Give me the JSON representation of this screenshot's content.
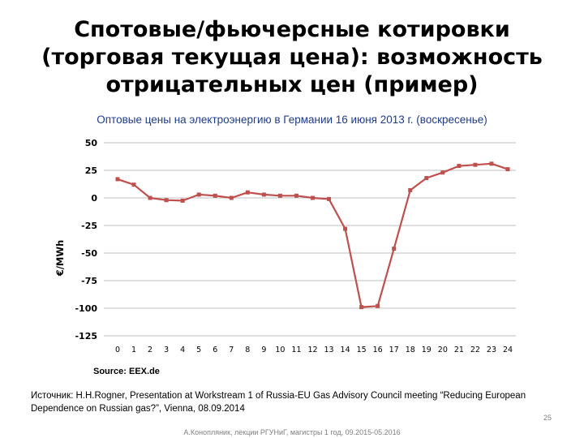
{
  "slide": {
    "title_lines": [
      "Спотовые/фьючерсные котировки",
      "(торговая текущая цена): возможность",
      "отрицательных цен (пример)"
    ],
    "footnote": "Источник: H.H.Rogner, Presentation at Workstream 1 of Russia-EU Gas Advisory Council meeting “Reducing European Dependence on Russian gas?”, Vienna, 08.09.2014",
    "page_number": "25",
    "lecture_credit": "А.Конопляник, лекции РГУНиГ, магистры 1 год, 09.2015-05.2016"
  },
  "chart_data": {
    "type": "line",
    "title": "Оптовые цены на электроэнергию в Германии 16 июня 2013 г. (воскресенье)",
    "xlabel": "",
    "ylabel": "€/MWh",
    "source": "Source: EEX.de",
    "ylim": [
      -125,
      50
    ],
    "yticks": [
      50,
      25,
      0,
      -25,
      -50,
      -75,
      -100,
      -125
    ],
    "categories": [
      "0",
      "1",
      "2",
      "3",
      "4",
      "5",
      "6",
      "7",
      "8",
      "9",
      "10",
      "11",
      "12",
      "13",
      "14",
      "15",
      "16",
      "17",
      "18",
      "19",
      "20",
      "21",
      "22",
      "23",
      "24"
    ],
    "grid": "horizontal",
    "legend": "none",
    "color": "#c0504d",
    "series": [
      {
        "values": [
          17,
          12,
          0,
          -2,
          -2.5,
          3,
          2,
          0,
          5,
          3,
          2,
          2,
          0,
          -1,
          -28,
          -99,
          -98,
          -46,
          7,
          18,
          23,
          29,
          30,
          31,
          26
        ]
      }
    ]
  }
}
